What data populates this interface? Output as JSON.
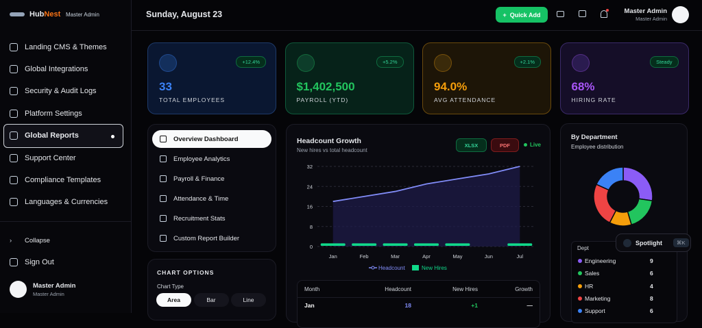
{
  "sidebar": {
    "brand_prefix": "Hub",
    "brand_suffix": "Nest",
    "role": "Master Admin",
    "nav": [
      "Landing CMS & Themes",
      "Global Integrations",
      "Security & Audit Logs",
      "Platform Settings",
      "Global Reports",
      "Support Center",
      "Compliance Templates",
      "Languages & Currencies"
    ],
    "collapse": "Collapse",
    "sign_out": "Sign Out",
    "user": {
      "name": "Master Admin",
      "role": "Master Admin"
    }
  },
  "topbar": {
    "date": "Sunday, August 23",
    "quick_add": "Quick Add",
    "user": {
      "name": "Master Admin",
      "role": "Master Admin"
    }
  },
  "kpis": [
    {
      "value": "33",
      "label": "TOTAL EMPLOYEES",
      "change": "+12.4%"
    },
    {
      "value": "$1,402,500",
      "label": "PAYROLL (YTD)",
      "change": "+5.2%"
    },
    {
      "value": "94.0%",
      "label": "AVG ATTENDANCE",
      "change": "+2.1%"
    },
    {
      "value": "68%",
      "label": "HIRING RATE",
      "change": "Steady"
    }
  ],
  "reports_menu": [
    "Overview Dashboard",
    "Employee Analytics",
    "Payroll & Finance",
    "Attendance & Time",
    "Recruitment Stats",
    "Custom Report Builder"
  ],
  "chart_options": {
    "title": "CHART OPTIONS",
    "chart_type_label": "Chart Type",
    "types": [
      "Area",
      "Bar",
      "Line"
    ]
  },
  "headcount_chart": {
    "type": "area",
    "title": "Headcount Growth",
    "subtitle": "New hires vs total headcount",
    "exports": [
      "XLSX",
      "PDF"
    ],
    "live": "Live",
    "categories": [
      "Jan",
      "Feb",
      "Mar",
      "Apr",
      "May",
      "Jun",
      "Jul"
    ],
    "series": [
      {
        "name": "Headcount",
        "color": "#818cf8",
        "values": [
          18,
          20,
          22,
          25,
          27,
          29,
          32
        ]
      },
      {
        "name": "New Hires",
        "color": "#10d98a",
        "values": [
          1,
          1,
          1,
          1,
          1,
          0,
          1
        ]
      }
    ],
    "ylim": [
      0,
      32
    ],
    "yticks": [
      0,
      8,
      16,
      24,
      32
    ],
    "grid": true
  },
  "table": {
    "columns": [
      "Month",
      "Headcount",
      "New Hires",
      "Growth"
    ],
    "rows": [
      [
        "Jan",
        "18",
        "+1",
        "—"
      ]
    ]
  },
  "departments": {
    "type": "donut",
    "title": "By Department",
    "subtitle": "Employee distribution",
    "column": "Dept",
    "categories": [
      "Engineering",
      "Sales",
      "HR",
      "Marketing",
      "Support"
    ],
    "values": [
      9,
      6,
      4,
      8,
      6
    ],
    "colors": [
      "#8b5cf6",
      "#22c55e",
      "#f59e0b",
      "#ef4444",
      "#3b82f6"
    ]
  },
  "spotlight": {
    "label": "Spotlight",
    "shortcut": "⌘K"
  }
}
